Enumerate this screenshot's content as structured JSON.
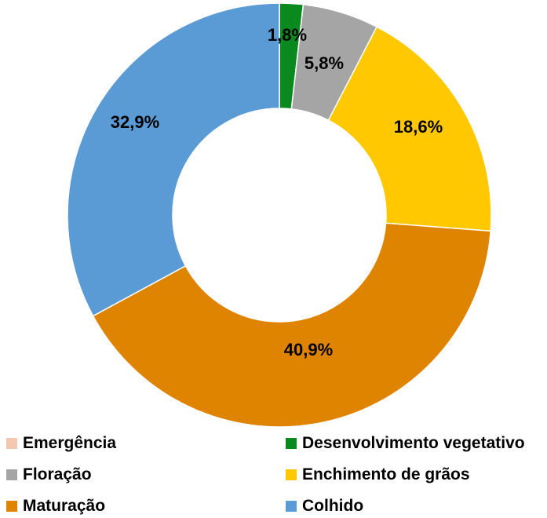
{
  "chart_data": {
    "type": "pie",
    "variant": "donut",
    "categories": [
      "Emergência",
      "Desenvolvimento vegetativo",
      "Floração",
      "Enchimento de grãos",
      "Maturação",
      "Colhido"
    ],
    "values": [
      0,
      1.8,
      5.8,
      18.6,
      40.9,
      32.9
    ],
    "value_labels": [
      "",
      "1,8%",
      "5,8%",
      "18,6%",
      "40,9%",
      "32,9%"
    ],
    "colors": [
      "#f4c7b0",
      "#0a8a1e",
      "#a5a5a5",
      "#ffc800",
      "#df8400",
      "#5b9bd5"
    ],
    "legend_position": "bottom",
    "title": ""
  }
}
